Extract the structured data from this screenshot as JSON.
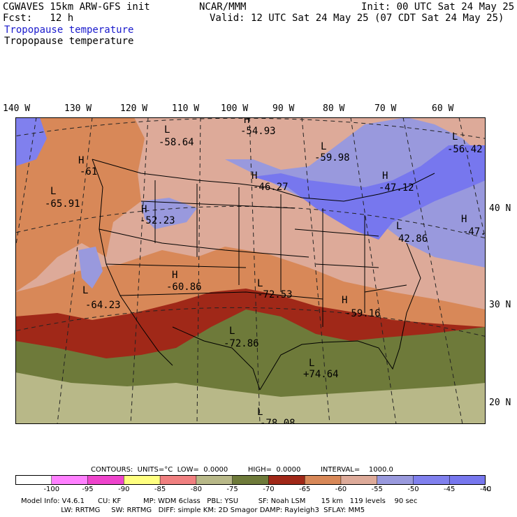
{
  "header": {
    "model": "CGWAVES 15km ARW-GFS init",
    "org": "NCAR/MMM",
    "init": "Init: 00 UTC Sat 24 May 25",
    "fcst": "Fcst:   12 h",
    "valid": "Valid: 12 UTC Sat 24 May 25 (07 CDT Sat 24 May 25)",
    "field_blue": "Tropopause temperature",
    "field_black": "Tropopause temperature"
  },
  "lon_labels": [
    "140 W",
    "130 W",
    "120 W",
    "110 W",
    "100 W",
    "90 W",
    "80 W",
    "70 W",
    "60 W"
  ],
  "lat_labels": [
    "40 N",
    "30 N",
    "20 N"
  ],
  "extremes": [
    {
      "type": "L",
      "value": "-58.64"
    },
    {
      "type": "H",
      "value": "-54.93"
    },
    {
      "type": "L",
      "value": "-59.98"
    },
    {
      "type": "H",
      "value": "-61"
    },
    {
      "type": "L",
      "value": "-65.91"
    },
    {
      "type": "H",
      "value": "-46.27"
    },
    {
      "type": "H",
      "value": "-47.12"
    },
    {
      "type": "L",
      "value": "-56.42"
    },
    {
      "type": "H",
      "value": "-52.23"
    },
    {
      "type": "L",
      "value": "42.86"
    },
    {
      "type": "H",
      "value": "-47."
    },
    {
      "type": "H",
      "value": "-60.86"
    },
    {
      "type": "L",
      "value": "-72.53"
    },
    {
      "type": "L",
      "value": "-64.23"
    },
    {
      "type": "H",
      "value": "-59.16"
    },
    {
      "type": "L",
      "value": "-72.86"
    },
    {
      "type": "L",
      "value": "+74.64"
    },
    {
      "type": "L",
      "value": "-78.08"
    }
  ],
  "contours_info": "CONTOURS:  UNITS=°C  LOW=  0.0000         HIGH=  0.0000         INTERVAL=    1000.0",
  "colorbar": {
    "colors": [
      "#ffffff",
      "#ff80ff",
      "#ee44cc",
      "#ffff80",
      "#f08080",
      "#b8b888",
      "#6e7a3a",
      "#a02818",
      "#d88858",
      "#ddaa99",
      "#9999dd",
      "#8080ee",
      "#7777ee"
    ],
    "labels": [
      "-100",
      "-95",
      "-90",
      "-85",
      "-80",
      "-75",
      "-70",
      "-65",
      "-60",
      "-55",
      "-50",
      "-45",
      "-40"
    ],
    "unit": "°C"
  },
  "footer": {
    "line1": "Model Info: V4.6.1      CU: KF          MP: WDM 6class   PBL: YSU         SF: Noah LSM       15 km   119 levels    90 sec",
    "line2": "                  LW: RRTMG     SW: RRTMG   DIFF: simple KM: 2D Smagor DAMP: Rayleigh3  SFLAY: MM5"
  }
}
